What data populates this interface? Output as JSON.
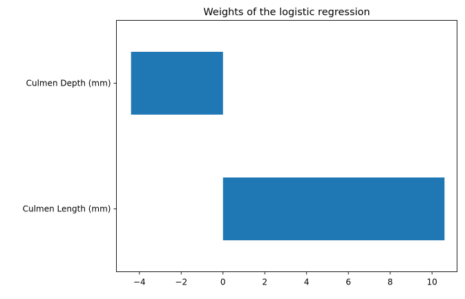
{
  "chart_data": {
    "type": "bar",
    "orientation": "horizontal",
    "title": "Weights of the logistic regression",
    "xlabel": "",
    "ylabel": "",
    "categories": [
      "Culmen Length (mm)",
      "Culmen Depth (mm)"
    ],
    "values": [
      10.6,
      -4.4
    ],
    "xlim": [
      -5.1,
      11.2
    ],
    "xticks": [
      -4,
      -2,
      0,
      2,
      4,
      6,
      8,
      10
    ],
    "xtick_labels": [
      "−4",
      "−2",
      "0",
      "2",
      "4",
      "6",
      "8",
      "10"
    ],
    "bar_color": "#1f77b4",
    "grid": false,
    "legend": "none"
  }
}
